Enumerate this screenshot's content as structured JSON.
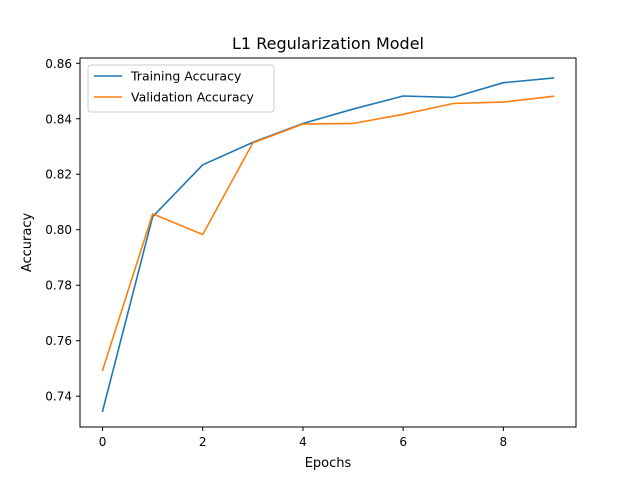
{
  "chart_data": {
    "type": "line",
    "title": "L1 Regularization Model",
    "xlabel": "Epochs",
    "ylabel": "Accuracy",
    "xlim": [
      -0.45,
      9.45
    ],
    "ylim": [
      0.7289,
      0.8619
    ],
    "x_ticks": [
      0,
      2,
      4,
      6,
      8
    ],
    "y_ticks": [
      0.74,
      0.76,
      0.78,
      0.8,
      0.82,
      0.84,
      0.86
    ],
    "y_tick_labels": [
      "0.74",
      "0.76",
      "0.78",
      "0.80",
      "0.82",
      "0.84",
      "0.86"
    ],
    "x": [
      0,
      1,
      2,
      3,
      4,
      5,
      6,
      7,
      8,
      9
    ],
    "legend_position": "top-left",
    "grid": false,
    "series": [
      {
        "name": "Training Accuracy",
        "color": "#1f77b4",
        "values": [
          0.7346,
          0.8047,
          0.8234,
          0.8315,
          0.8383,
          0.8435,
          0.8482,
          0.8477,
          0.853,
          0.8547
        ]
      },
      {
        "name": "Validation Accuracy",
        "color": "#ff7f0e",
        "values": [
          0.7493,
          0.8057,
          0.7983,
          0.8313,
          0.8381,
          0.8383,
          0.8416,
          0.8455,
          0.846,
          0.8481
        ]
      }
    ]
  }
}
